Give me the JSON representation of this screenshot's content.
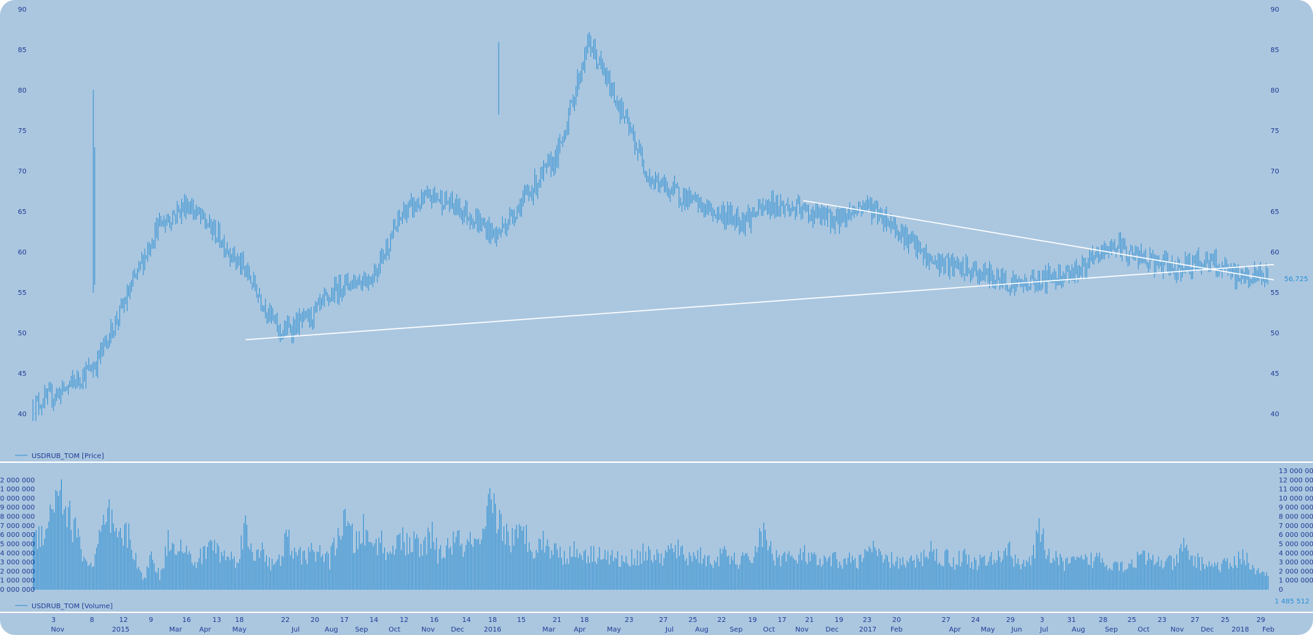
{
  "colors": {
    "background": "#abc7e0",
    "series": "#2e8fd1",
    "trendline": "#ffffff",
    "text": "#1f3a93",
    "divider": "#ffffff"
  },
  "chart_data": [
    {
      "type": "ohlc",
      "legend": "USDRUB_TOM [Price]",
      "ylim": [
        40,
        90
      ],
      "yticks": [
        "40",
        "45",
        "50",
        "55",
        "60",
        "65",
        "70",
        "75",
        "80",
        "85",
        "90"
      ],
      "last_value_label": "56,725",
      "x": [
        "2014-11",
        "2014-11",
        "2014-12",
        "2015-01",
        "2015-02",
        "2015-03",
        "2015-04",
        "2015-05",
        "2015-06",
        "2015-07",
        "2015-08",
        "2015-09",
        "2015-10",
        "2015-11",
        "2015-12",
        "2016-01",
        "2016-02",
        "2016-03",
        "2016-04",
        "2016-05",
        "2016-06",
        "2016-07",
        "2016-08",
        "2016-09",
        "2016-10",
        "2016-11",
        "2016-12",
        "2017-01",
        "2017-02",
        "2017-03",
        "2017-04",
        "2017-05",
        "2017-06",
        "2017-07",
        "2017-08",
        "2017-09",
        "2017-10",
        "2017-11",
        "2017-12",
        "2018-01",
        "2018-02"
      ],
      "series": [
        {
          "values": [
            41,
            43,
            46,
            54,
            63,
            66,
            62,
            57,
            50,
            52,
            56,
            57,
            65,
            67,
            65,
            62,
            67,
            72,
            86,
            78,
            69,
            67,
            65,
            64,
            66,
            65,
            64,
            66,
            63,
            59,
            58,
            57,
            56,
            57,
            58,
            61,
            59,
            58,
            59,
            57,
            57
          ]
        }
      ],
      "trendlines": [
        {
          "from": [
            "2015-05-18",
            49.2
          ],
          "to": [
            "2018-02-09",
            58.5
          ]
        },
        {
          "from": [
            "2016-11-10",
            66.4
          ],
          "to": [
            "2018-02-09",
            56.6
          ]
        }
      ]
    },
    {
      "type": "bar",
      "legend": "USDRUB_TOM [Volume]",
      "ylim": [
        0,
        13000000
      ],
      "yticks": [
        "0",
        "1 000 000",
        "2 000 000",
        "3 000 000",
        "4 000 000",
        "5 000 000",
        "6 000 000",
        "7 000 000",
        "8 000 000",
        "9 000 000",
        "10 000 000",
        "11 000 000",
        "12 000 000",
        "13 000 000"
      ],
      "left_yticks": [
        "0 000 000",
        "1 000 000",
        "2 000 000",
        "3 000 000",
        "4 000 000",
        "5 000 000",
        "6 000 000",
        "7 000 000",
        "8 000 000",
        "9 000 000",
        "0 000 000",
        "1 000 000",
        "2 000 000"
      ],
      "last_value_label": "1 485 512",
      "values": [
        5200000,
        6500000,
        8000000,
        12000000,
        8300000,
        6500000,
        3500000,
        2400000,
        6100000,
        7800000,
        5200000,
        6200000,
        4100000,
        800000,
        3900000,
        1300000,
        5500000,
        5100000,
        4200000,
        2700000,
        3800000,
        5200000,
        4100000,
        3600000,
        3200000,
        6900000,
        3300000,
        5100000,
        2700000,
        2800000,
        5800000,
        3500000,
        3900000,
        4000000,
        4200000,
        3000000,
        6200000,
        7300000,
        4900000,
        6500000,
        4600000,
        5700000,
        3300000,
        6300000,
        4800000,
        5200000,
        4100000,
        6200000,
        3600000,
        4800000,
        5400000,
        4600000,
        5200000,
        4500000,
        9200000,
        7800000,
        5900000,
        5500000,
        6300000,
        4700000,
        5300000,
        4800000,
        4100000,
        3700000,
        4200000,
        4100000,
        3800000,
        4200000,
        3500000,
        3400000,
        3000000,
        3600000,
        3900000,
        4100000,
        3200000,
        4100000,
        4500000,
        3600000,
        3700000,
        3900000,
        2900000,
        3500000,
        3800000,
        3100000,
        3200000,
        3400000,
        6300000,
        4800000,
        3300000,
        4000000,
        3000000,
        3900000,
        3400000,
        2800000,
        3100000,
        3300000,
        3000000,
        3500000,
        3000000,
        4900000,
        3500000,
        3100000,
        3300000,
        2800000,
        3000000,
        3300000,
        4700000,
        3400000,
        3600000,
        3000000,
        3800000,
        2900000,
        3100000,
        3200000,
        3300000,
        4800000,
        3300000,
        3100000,
        3000000,
        6400000,
        4000000,
        3200000,
        2900000,
        3000000,
        3100000,
        3200000,
        3600000,
        2800000,
        3100000,
        2500000,
        3000000,
        3600000,
        3200000,
        3100000,
        3000000,
        2800000,
        4600000,
        3400000,
        3000000,
        2800000,
        2600000,
        2700000,
        2900000,
        4000000,
        2500000,
        1800000,
        1485512
      ]
    }
  ],
  "x_axis": {
    "day_labels": [
      "3",
      "8",
      "12",
      "9",
      "16",
      "13",
      "18",
      "22",
      "20",
      "17",
      "14",
      "12",
      "16",
      "14",
      "18",
      "15",
      "21",
      "18",
      "23",
      "27",
      "25",
      "22",
      "19",
      "17",
      "21",
      "19",
      "23",
      "20",
      "27",
      "24",
      "29",
      "3",
      "31",
      "28",
      "25",
      "23",
      "27",
      "25",
      "29"
    ],
    "month_labels": [
      "Nov",
      "2015",
      "Mar",
      "Apr",
      "May",
      "Jul",
      "Aug",
      "Sep",
      "Oct",
      "Nov",
      "Dec",
      "2016",
      "Mar",
      "Apr",
      "May",
      "Jul",
      "Aug",
      "Sep",
      "Oct",
      "Nov",
      "Dec",
      "2017",
      "Feb",
      "Apr",
      "May",
      "Jun",
      "Jul",
      "Aug",
      "Sep",
      "Oct",
      "Nov",
      "Dec",
      "2018",
      "Feb"
    ]
  }
}
